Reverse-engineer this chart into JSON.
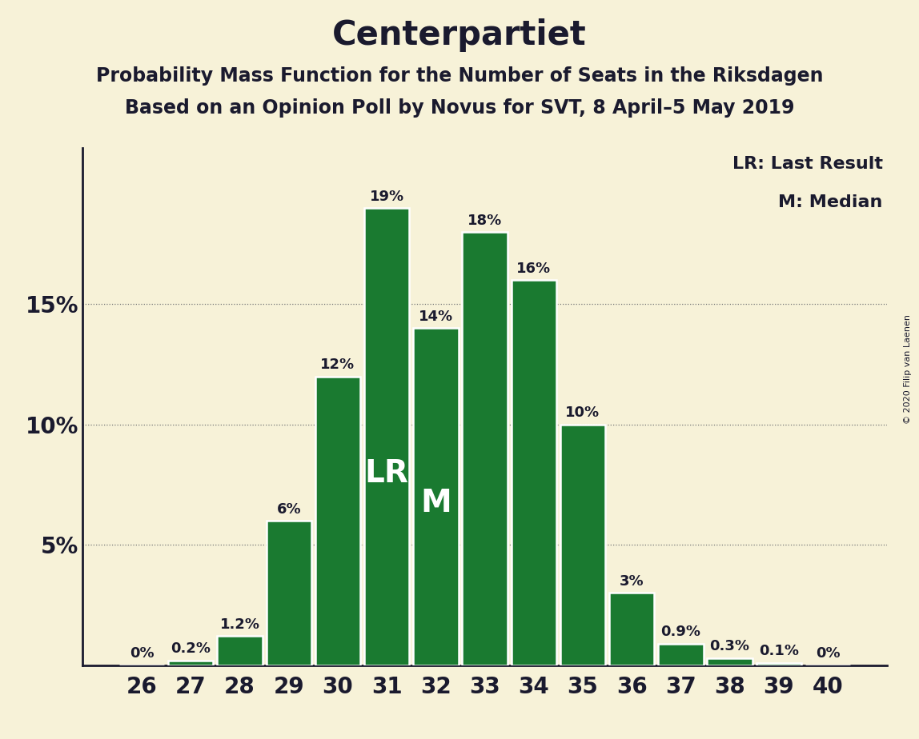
{
  "title": "Centerpartiet",
  "subtitle1": "Probability Mass Function for the Number of Seats in the Riksdagen",
  "subtitle2": "Based on an Opinion Poll by Novus for SVT, 8 April–5 May 2019",
  "copyright": "© 2020 Filip van Laenen",
  "seats": [
    26,
    27,
    28,
    29,
    30,
    31,
    32,
    33,
    34,
    35,
    36,
    37,
    38,
    39,
    40
  ],
  "probabilities": [
    0.0,
    0.2,
    1.2,
    6.0,
    12.0,
    19.0,
    14.0,
    18.0,
    16.0,
    10.0,
    3.0,
    0.9,
    0.3,
    0.1,
    0.0
  ],
  "prob_labels": [
    "0%",
    "0.2%",
    "1.2%",
    "6%",
    "12%",
    "19%",
    "14%",
    "18%",
    "16%",
    "10%",
    "3%",
    "0.9%",
    "0.3%",
    "0.1%",
    "0%"
  ],
  "bar_color": "#1a7a30",
  "bar_edge_color": "#f7f2d8",
  "background_color": "#f7f2d8",
  "text_color": "#1a1a2e",
  "grid_color": "#777777",
  "LR_seat": 31,
  "M_seat": 32,
  "LR_label": "LR",
  "M_label": "M",
  "legend_LR": "LR: Last Result",
  "legend_M": "M: Median",
  "yticks": [
    0,
    5,
    10,
    15
  ],
  "ytick_labels": [
    "",
    "5%",
    "10%",
    "15%"
  ],
  "ylim": [
    0,
    21.5
  ],
  "title_fontsize": 30,
  "subtitle_fontsize": 17,
  "legend_fontsize": 16,
  "bar_label_fontsize": 13,
  "tick_fontsize": 20,
  "lr_label_fontsize": 28,
  "m_label_fontsize": 28
}
